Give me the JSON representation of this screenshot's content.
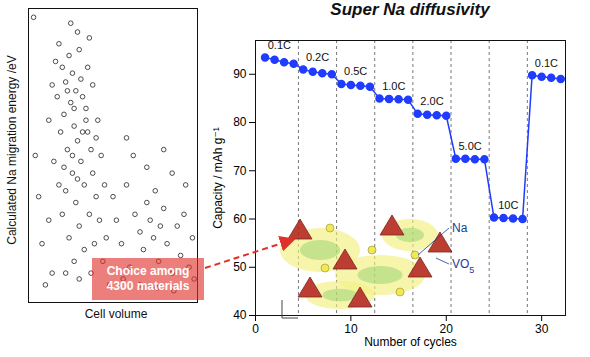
{
  "chart_data": [
    {
      "type": "scatter",
      "x_label": "Cell volume",
      "y_label": "Calculated Na migration energy /eV",
      "xlim": [
        0,
        100
      ],
      "ylim": [
        0,
        100
      ],
      "tick_labels": false,
      "color": "#222222",
      "marker": "circle",
      "annotations": [
        "Choice among 4300 materials"
      ],
      "x": [
        18,
        20,
        22,
        24,
        26,
        28,
        30,
        25,
        21,
        27,
        32,
        34,
        29,
        23,
        31,
        35,
        19,
        26,
        33,
        37,
        22,
        28,
        36,
        30,
        24,
        38,
        40,
        42,
        33,
        27,
        39,
        44,
        20,
        17,
        29,
        35,
        38,
        41,
        43,
        36,
        16,
        25,
        31,
        23,
        27,
        34,
        40,
        45,
        46,
        37,
        30,
        22,
        15,
        18,
        12,
        14,
        32,
        26,
        21,
        29,
        50,
        52,
        55,
        58,
        60,
        63,
        66,
        68,
        70,
        72,
        74,
        75,
        77,
        78,
        80,
        82,
        85,
        88,
        90,
        92,
        95,
        97,
        62,
        70,
        85,
        93,
        56,
        66,
        76,
        86,
        48,
        98,
        58,
        80,
        10,
        14,
        8,
        6,
        4,
        3,
        12
      ],
      "values": [
        88,
        80,
        75,
        84,
        78,
        72,
        86,
        68,
        64,
        60,
        70,
        66,
        55,
        52,
        48,
        58,
        58,
        44,
        40,
        52,
        38,
        34,
        30,
        26,
        22,
        44,
        36,
        28,
        18,
        14,
        20,
        14,
        30,
        70,
        92,
        80,
        74,
        62,
        50,
        90,
        82,
        95,
        76,
        72,
        66,
        62,
        56,
        40,
        22,
        10,
        8,
        10,
        48,
        40,
        62,
        74,
        58,
        50,
        46,
        42,
        36,
        28,
        20,
        40,
        12,
        30,
        24,
        18,
        34,
        28,
        22,
        38,
        14,
        26,
        32,
        20,
        10,
        26,
        16,
        30,
        12,
        22,
        50,
        46,
        44,
        40,
        8,
        6,
        5,
        4,
        6,
        8,
        56,
        52,
        6,
        10,
        20,
        36,
        50,
        97,
        28
      ]
    },
    {
      "type": "line",
      "title": "Super Na diffusivity",
      "x_label": "Number of cycles",
      "y_label": "Capacity / mAh g⁻¹",
      "xlim": [
        0,
        32.5
      ],
      "xticks": [
        0,
        10,
        20,
        30
      ],
      "ylim": [
        40,
        97
      ],
      "yticks": [
        40,
        50,
        60,
        70,
        80,
        90
      ],
      "color": "#1f3cff",
      "marker": "circle",
      "x": [
        1,
        2,
        3,
        4,
        5,
        6,
        7,
        8,
        9,
        10,
        11,
        12,
        13,
        14,
        15,
        16,
        17,
        18,
        19,
        20,
        21,
        22,
        23,
        24,
        25,
        26,
        27,
        28,
        29,
        30,
        31,
        32
      ],
      "values": [
        93.5,
        93,
        92.5,
        92.2,
        91,
        90.5,
        90.2,
        90,
        88,
        87.8,
        87.6,
        87.4,
        85,
        84.9,
        84.8,
        84.7,
        81.8,
        81.6,
        81.5,
        81.4,
        72.5,
        72.5,
        72.4,
        72.4,
        60.3,
        60.2,
        60.1,
        60,
        89.8,
        89.5,
        89.3,
        89
      ],
      "segments": [
        {
          "label": "0.1C",
          "from": 0.5,
          "to": 4.5
        },
        {
          "label": "0.2C",
          "from": 4.5,
          "to": 8.5
        },
        {
          "label": "0.5C",
          "from": 8.5,
          "to": 12.5
        },
        {
          "label": "1.0C",
          "from": 12.5,
          "to": 16.5
        },
        {
          "label": "2.0C",
          "from": 16.5,
          "to": 20.5
        },
        {
          "label": "5.0C",
          "from": 20.5,
          "to": 24.5
        },
        {
          "label": "10C",
          "from": 24.5,
          "to": 28.5
        },
        {
          "label": "0.1C",
          "from": 28.5,
          "to": 32.5
        }
      ],
      "annotations": [
        "Na",
        "VO5"
      ]
    }
  ]
}
